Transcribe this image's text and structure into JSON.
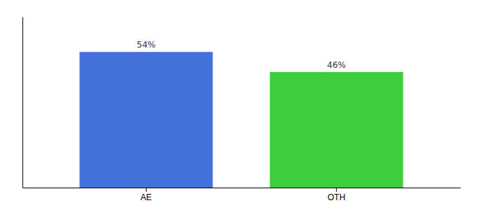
{
  "chart_data": {
    "type": "bar",
    "categories": [
      "AE",
      "OTH"
    ],
    "values": [
      54,
      46
    ],
    "value_labels": [
      "54%",
      "46%"
    ],
    "data_labels": true,
    "colors": [
      "#4472db",
      "#3dcd3d"
    ],
    "ylim": [
      0,
      68
    ],
    "tick_labels": "x"
  }
}
